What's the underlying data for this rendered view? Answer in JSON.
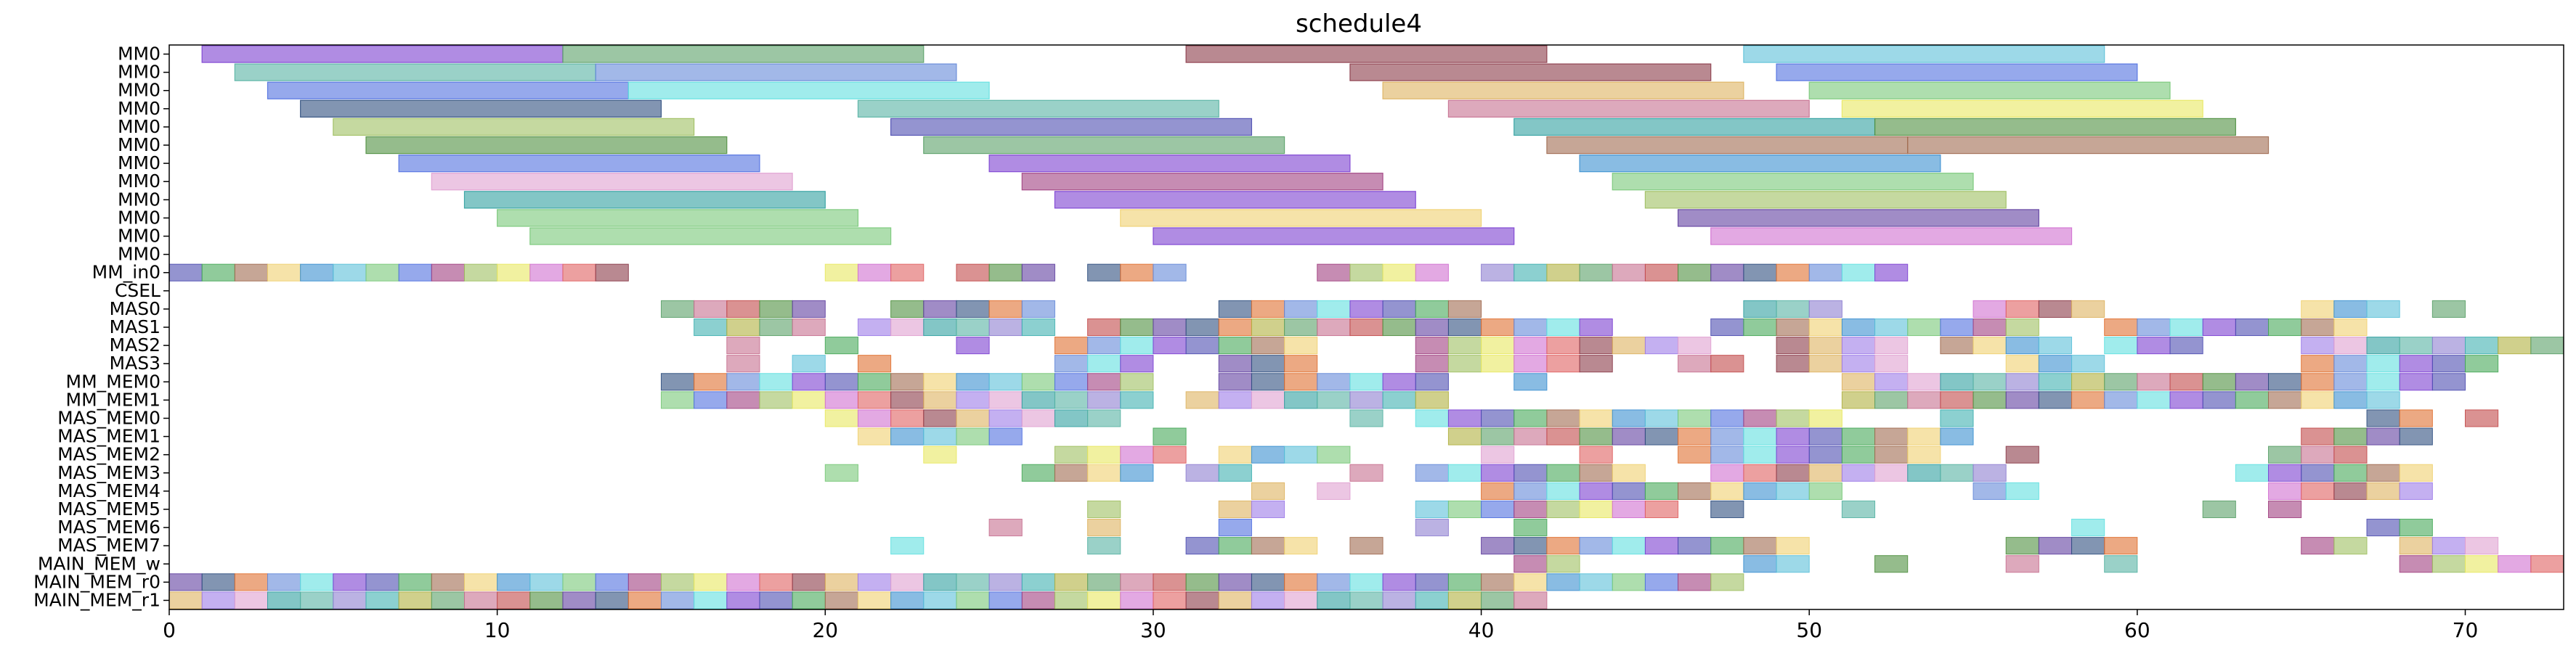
{
  "chart_data": {
    "type": "gantt",
    "title": "schedule4",
    "xlabel": "",
    "ylabel": "",
    "xlim": [
      0,
      73
    ],
    "x_ticks": [
      0,
      10,
      20,
      30,
      40,
      50,
      60,
      70
    ],
    "grid": false,
    "rows": [
      "MM0",
      "MM0",
      "MM0",
      "MM0",
      "MM0",
      "MM0",
      "MM0",
      "MM0",
      "MM0",
      "MM0",
      "MM0",
      "MM0",
      "MM_in0",
      "CSEL",
      "MAS0",
      "MAS1",
      "MAS2",
      "MAS3",
      "MM_MEM0",
      "MM_MEM1",
      "MAS_MEM0",
      "MAS_MEM1",
      "MAS_MEM2",
      "MAS_MEM3",
      "MAS_MEM4",
      "MAS_MEM5",
      "MAS_MEM6",
      "MAS_MEM7",
      "MAIN_MEM_w",
      "MAIN_MEM_r0",
      "MAIN_MEM_r1"
    ],
    "palette": [
      "#7b3fd1",
      "#5aa068",
      "#8b3a48",
      "#3a8fd0",
      "#2f4f7f",
      "#57b3a3",
      "#9fbf60",
      "#4d4db0",
      "#c77090",
      "#ddb35f",
      "#5bc0d8",
      "#e07030",
      "#8e7fd0",
      "#e8e860",
      "#46a858",
      "#c24a4a",
      "#9c7be8",
      "#78c878",
      "#6488d8",
      "#3fb0b0",
      "#d070d0",
      "#a06a50",
      "#4f8f3f",
      "#e0a0d0",
      "#5070e0",
      "#60e0e0",
      "#b0b040",
      "#e06060",
      "#f0d070",
      "#6040a0",
      "#30a0a0",
      "#a04080"
    ],
    "tasks": [
      {
        "row": 0,
        "start": 1,
        "end": 12,
        "c": 0
      },
      {
        "row": 0,
        "start": 12,
        "end": 23,
        "c": 1
      },
      {
        "row": 0,
        "start": 31,
        "end": 42,
        "c": 2
      },
      {
        "row": 0,
        "start": 48,
        "end": 59,
        "c": 10
      },
      {
        "row": 1,
        "start": 2,
        "end": 13,
        "c": 5
      },
      {
        "row": 1,
        "start": 13,
        "end": 24,
        "c": 18
      },
      {
        "row": 1,
        "start": 36,
        "end": 47,
        "c": 2
      },
      {
        "row": 1,
        "start": 49,
        "end": 60,
        "c": 24
      },
      {
        "row": 2,
        "start": 3,
        "end": 14,
        "c": 24
      },
      {
        "row": 2,
        "start": 14,
        "end": 25,
        "c": 25
      },
      {
        "row": 2,
        "start": 37,
        "end": 48,
        "c": 9
      },
      {
        "row": 2,
        "start": 50,
        "end": 61,
        "c": 17
      },
      {
        "row": 3,
        "start": 4,
        "end": 15,
        "c": 4
      },
      {
        "row": 3,
        "start": 21,
        "end": 32,
        "c": 5
      },
      {
        "row": 3,
        "start": 39,
        "end": 50,
        "c": 8
      },
      {
        "row": 3,
        "start": 51,
        "end": 62,
        "c": 13
      },
      {
        "row": 4,
        "start": 5,
        "end": 16,
        "c": 6
      },
      {
        "row": 4,
        "start": 22,
        "end": 33,
        "c": 7
      },
      {
        "row": 4,
        "start": 41,
        "end": 52,
        "c": 30
      },
      {
        "row": 4,
        "start": 52,
        "end": 63,
        "c": 22
      },
      {
        "row": 5,
        "start": 6,
        "end": 17,
        "c": 22
      },
      {
        "row": 5,
        "start": 23,
        "end": 34,
        "c": 1
      },
      {
        "row": 5,
        "start": 42,
        "end": 53,
        "c": 21
      },
      {
        "row": 5,
        "start": 53,
        "end": 64,
        "c": 21
      },
      {
        "row": 6,
        "start": 7,
        "end": 18,
        "c": 24
      },
      {
        "row": 6,
        "start": 25,
        "end": 36,
        "c": 0
      },
      {
        "row": 6,
        "start": 43,
        "end": 54,
        "c": 3
      },
      {
        "row": 7,
        "start": 8,
        "end": 19,
        "c": 23
      },
      {
        "row": 7,
        "start": 26,
        "end": 37,
        "c": 31
      },
      {
        "row": 7,
        "start": 44,
        "end": 55,
        "c": 17
      },
      {
        "row": 8,
        "start": 9,
        "end": 20,
        "c": 30
      },
      {
        "row": 8,
        "start": 27,
        "end": 38,
        "c": 0
      },
      {
        "row": 8,
        "start": 45,
        "end": 56,
        "c": 6
      },
      {
        "row": 9,
        "start": 10,
        "end": 21,
        "c": 17
      },
      {
        "row": 9,
        "start": 29,
        "end": 40,
        "c": 28
      },
      {
        "row": 9,
        "start": 46,
        "end": 57,
        "c": 29
      },
      {
        "row": 10,
        "start": 11,
        "end": 22,
        "c": 17
      },
      {
        "row": 10,
        "start": 30,
        "end": 41,
        "c": 0
      },
      {
        "row": 10,
        "start": 47,
        "end": 58,
        "c": 20
      },
      {
        "row": 12,
        "start": 0,
        "end": 14,
        "c": 3,
        "u": 1
      },
      {
        "row": 12,
        "start": 20,
        "end": 23,
        "c": 9,
        "u": 1
      },
      {
        "row": 12,
        "start": 24,
        "end": 27,
        "c": 11,
        "u": 1
      },
      {
        "row": 12,
        "start": 28,
        "end": 31,
        "c": 0,
        "u": 1
      },
      {
        "row": 12,
        "start": 35,
        "end": 39,
        "c": 27,
        "u": 1
      },
      {
        "row": 12,
        "start": 40,
        "end": 53,
        "c": 8,
        "u": 1
      },
      {
        "row": 14,
        "start": 15,
        "end": 20,
        "c": 23,
        "u": 1
      },
      {
        "row": 14,
        "start": 22,
        "end": 27,
        "c": 12,
        "u": 1
      },
      {
        "row": 14,
        "start": 32,
        "end": 40,
        "c": 26,
        "u": 1
      },
      {
        "row": 14,
        "start": 48,
        "end": 51,
        "c": 20,
        "u": 1
      },
      {
        "row": 14,
        "start": 55,
        "end": 59,
        "c": 10,
        "u": 1
      },
      {
        "row": 14,
        "start": 65,
        "end": 68,
        "c": 18,
        "u": 1
      },
      {
        "row": 14,
        "start": 69,
        "end": 70,
        "c": 23,
        "u": 1
      },
      {
        "row": 15,
        "start": 16,
        "end": 20,
        "c": 6,
        "u": 1
      },
      {
        "row": 15,
        "start": 21,
        "end": 27,
        "c": 3,
        "u": 1
      },
      {
        "row": 15,
        "start": 28,
        "end": 33,
        "c": 2,
        "u": 1
      },
      {
        "row": 15,
        "start": 33,
        "end": 44,
        "c": 13,
        "u": 1
      },
      {
        "row": 15,
        "start": 47,
        "end": 57,
        "c": 26,
        "u": 1
      },
      {
        "row": 15,
        "start": 59,
        "end": 67,
        "c": 30,
        "u": 1
      },
      {
        "row": 16,
        "start": 17,
        "end": 18,
        "c": 24,
        "u": 1
      },
      {
        "row": 16,
        "start": 20,
        "end": 21,
        "c": 30,
        "u": 1
      },
      {
        "row": 16,
        "start": 24,
        "end": 25,
        "c": 16,
        "u": 1
      },
      {
        "row": 16,
        "start": 27,
        "end": 35,
        "c": 27,
        "u": 1
      },
      {
        "row": 16,
        "start": 38,
        "end": 47,
        "c": 15,
        "u": 1
      },
      {
        "row": 16,
        "start": 49,
        "end": 53,
        "c": 18,
        "u": 1
      },
      {
        "row": 16,
        "start": 54,
        "end": 58,
        "c": 5,
        "u": 1
      },
      {
        "row": 16,
        "start": 59,
        "end": 62,
        "c": 9,
        "u": 1
      },
      {
        "row": 16,
        "start": 65,
        "end": 73,
        "c": 0,
        "u": 1
      },
      {
        "row": 17,
        "start": 17,
        "end": 18,
        "c": 21,
        "u": 1
      },
      {
        "row": 17,
        "start": 19,
        "end": 20,
        "c": 23,
        "u": 1
      },
      {
        "row": 17,
        "start": 21,
        "end": 22,
        "c": 24,
        "u": 1
      },
      {
        "row": 17,
        "start": 27,
        "end": 30,
        "c": 31,
        "u": 1
      },
      {
        "row": 17,
        "start": 32,
        "end": 35,
        "c": 10,
        "u": 1
      },
      {
        "row": 17,
        "start": 38,
        "end": 44,
        "c": 12,
        "u": 1
      },
      {
        "row": 17,
        "start": 46,
        "end": 48,
        "c": 21,
        "u": 1
      },
      {
        "row": 17,
        "start": 49,
        "end": 53,
        "c": 15,
        "u": 1
      },
      {
        "row": 17,
        "start": 56,
        "end": 59,
        "c": 9,
        "u": 1
      },
      {
        "row": 17,
        "start": 65,
        "end": 71,
        "c": 24,
        "u": 1
      },
      {
        "row": 18,
        "start": 15,
        "end": 30,
        "c": 14,
        "u": 1
      },
      {
        "row": 18,
        "start": 32,
        "end": 39,
        "c": 7,
        "u": 1
      },
      {
        "row": 18,
        "start": 41,
        "end": 42,
        "c": 13,
        "u": 1
      },
      {
        "row": 18,
        "start": 51,
        "end": 70,
        "c": 19,
        "u": 1
      },
      {
        "row": 19,
        "start": 15,
        "end": 30,
        "c": 24,
        "u": 1
      },
      {
        "row": 19,
        "start": 31,
        "end": 39,
        "c": 16,
        "u": 1
      },
      {
        "row": 19,
        "start": 51,
        "end": 68,
        "c": 1,
        "u": 1
      },
      {
        "row": 20,
        "start": 20,
        "end": 29,
        "c": 17,
        "u": 1
      },
      {
        "row": 20,
        "start": 36,
        "end": 37,
        "c": 9,
        "u": 1
      },
      {
        "row": 20,
        "start": 38,
        "end": 51,
        "c": 29,
        "u": 1
      },
      {
        "row": 20,
        "start": 54,
        "end": 55,
        "c": 23,
        "u": 1
      },
      {
        "row": 20,
        "start": 67,
        "end": 69,
        "c": 8,
        "u": 1
      },
      {
        "row": 20,
        "start": 70,
        "end": 71,
        "c": 19,
        "u": 1
      },
      {
        "row": 21,
        "start": 21,
        "end": 26,
        "c": 29,
        "u": 1
      },
      {
        "row": 21,
        "start": 30,
        "end": 31,
        "c": 15,
        "u": 1
      },
      {
        "row": 21,
        "start": 39,
        "end": 55,
        "c": 27,
        "u": 1
      },
      {
        "row": 21,
        "start": 65,
        "end": 69,
        "c": 16,
        "u": 1
      },
      {
        "row": 22,
        "start": 23,
        "end": 24,
        "c": 11,
        "u": 1
      },
      {
        "row": 22,
        "start": 27,
        "end": 31,
        "c": 4,
        "u": 1
      },
      {
        "row": 22,
        "start": 32,
        "end": 36,
        "c": 26,
        "u": 1
      },
      {
        "row": 22,
        "start": 40,
        "end": 41,
        "c": 21,
        "u": 1
      },
      {
        "row": 22,
        "start": 43,
        "end": 44,
        "c": 25,
        "u": 1
      },
      {
        "row": 22,
        "start": 46,
        "end": 54,
        "c": 9,
        "u": 1
      },
      {
        "row": 22,
        "start": 56,
        "end": 57,
        "c": 0,
        "u": 1
      },
      {
        "row": 22,
        "start": 64,
        "end": 67,
        "c": 31,
        "u": 1
      },
      {
        "row": 23,
        "start": 20,
        "end": 21,
        "c": 12,
        "u": 1
      },
      {
        "row": 23,
        "start": 26,
        "end": 30,
        "c": 9,
        "u": 1
      },
      {
        "row": 23,
        "start": 31,
        "end": 33,
        "c": 7,
        "u": 1
      },
      {
        "row": 23,
        "start": 36,
        "end": 37,
        "c": 3,
        "u": 1
      },
      {
        "row": 23,
        "start": 38,
        "end": 45,
        "c": 13,
        "u": 1
      },
      {
        "row": 23,
        "start": 47,
        "end": 56,
        "c": 15,
        "u": 1
      },
      {
        "row": 23,
        "start": 63,
        "end": 69,
        "c": 20,
        "u": 1
      },
      {
        "row": 24,
        "start": 33,
        "end": 34,
        "c": 1,
        "u": 1
      },
      {
        "row": 24,
        "start": 35,
        "end": 36,
        "c": 15,
        "u": 1
      },
      {
        "row": 24,
        "start": 40,
        "end": 51,
        "c": 3,
        "u": 1
      },
      {
        "row": 24,
        "start": 55,
        "end": 57,
        "c": 10,
        "u": 1
      },
      {
        "row": 24,
        "start": 64,
        "end": 69,
        "c": 12,
        "u": 1
      },
      {
        "row": 25,
        "start": 28,
        "end": 29,
        "c": 27,
        "u": 1
      },
      {
        "row": 25,
        "start": 32,
        "end": 34,
        "c": 30,
        "u": 1
      },
      {
        "row": 25,
        "start": 38,
        "end": 46,
        "c": 31,
        "u": 1
      },
      {
        "row": 25,
        "start": 47,
        "end": 48,
        "c": 25,
        "u": 1
      },
      {
        "row": 25,
        "start": 51,
        "end": 52,
        "c": 26,
        "u": 1
      },
      {
        "row": 25,
        "start": 62,
        "end": 63,
        "c": 22,
        "u": 1
      },
      {
        "row": 25,
        "start": 64,
        "end": 65,
        "c": 20,
        "u": 1
      },
      {
        "row": 26,
        "start": 25,
        "end": 26,
        "c": 26,
        "u": 1
      },
      {
        "row": 26,
        "start": 28,
        "end": 29,
        "c": 27,
        "u": 1
      },
      {
        "row": 26,
        "start": 32,
        "end": 33,
        "c": 10,
        "u": 1
      },
      {
        "row": 26,
        "start": 38,
        "end": 39,
        "c": 30,
        "u": 1
      },
      {
        "row": 26,
        "start": 41,
        "end": 42,
        "c": 0,
        "u": 1
      },
      {
        "row": 26,
        "start": 58,
        "end": 59,
        "c": 11,
        "u": 1
      },
      {
        "row": 26,
        "start": 67,
        "end": 69,
        "c": 25,
        "u": 1
      },
      {
        "row": 27,
        "start": 22,
        "end": 23,
        "c": 8,
        "u": 1
      },
      {
        "row": 27,
        "start": 28,
        "end": 29,
        "c": 20,
        "u": 1
      },
      {
        "row": 27,
        "start": 31,
        "end": 35,
        "c": 22,
        "u": 1
      },
      {
        "row": 27,
        "start": 36,
        "end": 37,
        "c": 4,
        "u": 1
      },
      {
        "row": 27,
        "start": 40,
        "end": 50,
        "c": 12,
        "u": 1
      },
      {
        "row": 27,
        "start": 56,
        "end": 60,
        "c": 5,
        "u": 1
      },
      {
        "row": 27,
        "start": 65,
        "end": 67,
        "c": 14,
        "u": 1
      },
      {
        "row": 27,
        "start": 68,
        "end": 71,
        "c": 24,
        "u": 1
      },
      {
        "row": 28,
        "start": 41,
        "end": 43,
        "c": 11,
        "u": 1
      },
      {
        "row": 28,
        "start": 48,
        "end": 50,
        "c": 15,
        "u": 1
      },
      {
        "row": 28,
        "start": 52,
        "end": 53,
        "c": 2,
        "u": 1
      },
      {
        "row": 28,
        "start": 56,
        "end": 57,
        "c": 20,
        "u": 1
      },
      {
        "row": 28,
        "start": 59,
        "end": 60,
        "c": 17,
        "u": 1
      },
      {
        "row": 28,
        "start": 68,
        "end": 73,
        "c": 11,
        "u": 1
      },
      {
        "row": 29,
        "start": 0,
        "end": 48,
        "c": 6,
        "u": 1
      },
      {
        "row": 30,
        "start": 0,
        "end": 42,
        "c": 15,
        "u": 1
      }
    ]
  }
}
